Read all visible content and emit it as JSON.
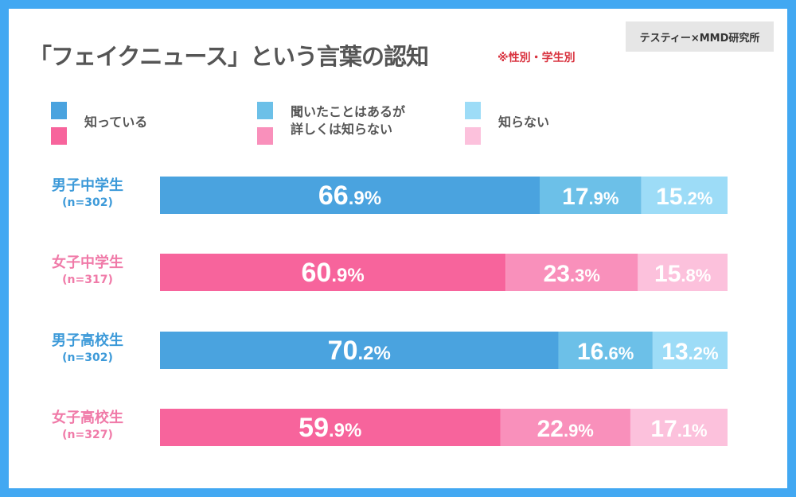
{
  "title": "「フェイクニュース」という言葉の認知",
  "subtitle": "※性別・学生別",
  "credit": "テスティー×MMD研究所",
  "colors": {
    "border": "#42a8f2",
    "male": [
      "#4aa3df",
      "#6cc0e8",
      "#9ddcf7"
    ],
    "female": [
      "#f7649c",
      "#f990bb",
      "#fcc1dc"
    ],
    "male_label": "#3d9ad9",
    "female_label": "#f07aa8"
  },
  "chart_data": {
    "type": "bar",
    "orientation": "horizontal-stacked-100",
    "title": "「フェイクニュース」という言葉の認知",
    "legend": [
      "知っている",
      "聞いたことはあるが詳しくは知らない",
      "知らない"
    ],
    "legend_lines": [
      [
        "知っている"
      ],
      [
        "聞いたことはあるが",
        "詳しくは知らない"
      ],
      [
        "知らない"
      ]
    ],
    "categories": [
      {
        "group": "男子中学生",
        "n": "(n=302)",
        "gender": "male"
      },
      {
        "group": "女子中学生",
        "n": "(n=317)",
        "gender": "female"
      },
      {
        "group": "男子高校生",
        "n": "(n=302)",
        "gender": "male"
      },
      {
        "group": "女子高校生",
        "n": "(n=327)",
        "gender": "female"
      }
    ],
    "series": [
      {
        "name": "知っている",
        "values": [
          66.9,
          60.9,
          70.2,
          59.9
        ]
      },
      {
        "name": "聞いたことはあるが詳しくは知らない",
        "values": [
          17.9,
          23.3,
          16.6,
          22.9
        ]
      },
      {
        "name": "知らない",
        "values": [
          15.2,
          15.8,
          13.2,
          17.1
        ]
      }
    ],
    "unit": "%",
    "xlim": [
      0,
      100
    ]
  }
}
